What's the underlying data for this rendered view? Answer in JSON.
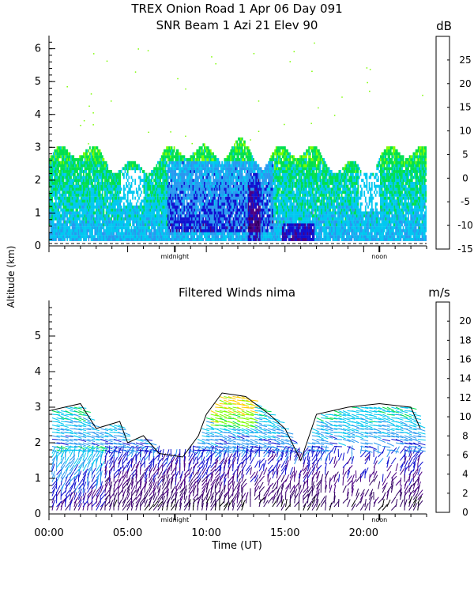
{
  "chart_data": [
    {
      "type": "heatmap",
      "title": "TREX Onion Road    1 Apr 06 Day 091",
      "subtitle": "SNR Beam 1 Azi   21 Elev 90",
      "ylabel": "Altitude (km)",
      "ylim": [
        0,
        6.4
      ],
      "yticks": [
        "0",
        "1",
        "2",
        "3",
        "4",
        "5",
        "6"
      ],
      "xlim": [
        0,
        24
      ],
      "x_markers": [
        {
          "x": 8,
          "label": "midnight"
        },
        {
          "x": 21,
          "label": "noon"
        }
      ],
      "colorbar": {
        "unit": "dB",
        "ticks": [
          "-15",
          "-10",
          "-5",
          "0",
          "5",
          "10",
          "15",
          "20",
          "25"
        ],
        "range": [
          -15,
          30
        ],
        "colors": [
          "#7cfc00",
          "#00e050",
          "#00c8f0",
          "#2898f0",
          "#1010d0",
          "#4b0082",
          "#300060",
          "#e02020",
          "#ff8c00",
          "#ffd000"
        ]
      },
      "layers": [
        {
          "name": "low",
          "x0": 0,
          "x1": 24,
          "y0": 0.15,
          "y1": 2.9
        },
        {
          "name": "mid",
          "x0": 0,
          "x1": 24,
          "y0": 0.8,
          "y1": 2.6
        },
        {
          "name": "strong",
          "x0": 7,
          "x1": 14.5,
          "y0": 0.3,
          "y1": 2.6
        },
        {
          "name": "peak",
          "x0": 12.8,
          "x1": 13.3,
          "y0": 0.2,
          "y1": 2.2
        }
      ]
    },
    {
      "type": "scatter",
      "title": "Filtered Winds nima",
      "xlabel": "Time (UT)",
      "ylim": [
        0,
        6
      ],
      "yticks": [
        "0",
        "1",
        "2",
        "3",
        "4",
        "5"
      ],
      "xlim": [
        0,
        24
      ],
      "xticks": [
        "00:00",
        "05:00",
        "10:00",
        "15:00",
        "20:00"
      ],
      "xtick_values": [
        0,
        5,
        10,
        15,
        20
      ],
      "x_markers": [
        {
          "x": 8,
          "label": "midnight"
        },
        {
          "x": 21,
          "label": "noon"
        }
      ],
      "colorbar": {
        "unit": "m/s",
        "ticks": [
          "0",
          "2",
          "4",
          "6",
          "8",
          "10",
          "12",
          "14",
          "16",
          "18",
          "20"
        ],
        "range": [
          0,
          22
        ],
        "colors": [
          "#000000",
          "#300060",
          "#4b0082",
          "#1010d0",
          "#2898f0",
          "#00c8f0",
          "#00e050",
          "#7cfc00",
          "#ffd000",
          "#ff8c00",
          "#e02020"
        ]
      },
      "wind_top": [
        [
          0,
          2.9
        ],
        [
          2,
          3.1
        ],
        [
          3,
          2.4
        ],
        [
          4.5,
          2.6
        ],
        [
          5,
          2.0
        ],
        [
          6,
          2.2
        ],
        [
          7,
          1.7
        ],
        [
          8.5,
          1.6
        ],
        [
          9.5,
          2.2
        ],
        [
          10,
          2.8
        ],
        [
          11,
          3.4
        ],
        [
          12.5,
          3.3
        ],
        [
          14,
          2.8
        ],
        [
          15,
          2.4
        ],
        [
          16,
          1.5
        ],
        [
          17,
          2.8
        ],
        [
          19,
          3.0
        ],
        [
          21,
          3.1
        ],
        [
          23,
          3.0
        ],
        [
          23.6,
          2.4
        ]
      ]
    }
  ]
}
